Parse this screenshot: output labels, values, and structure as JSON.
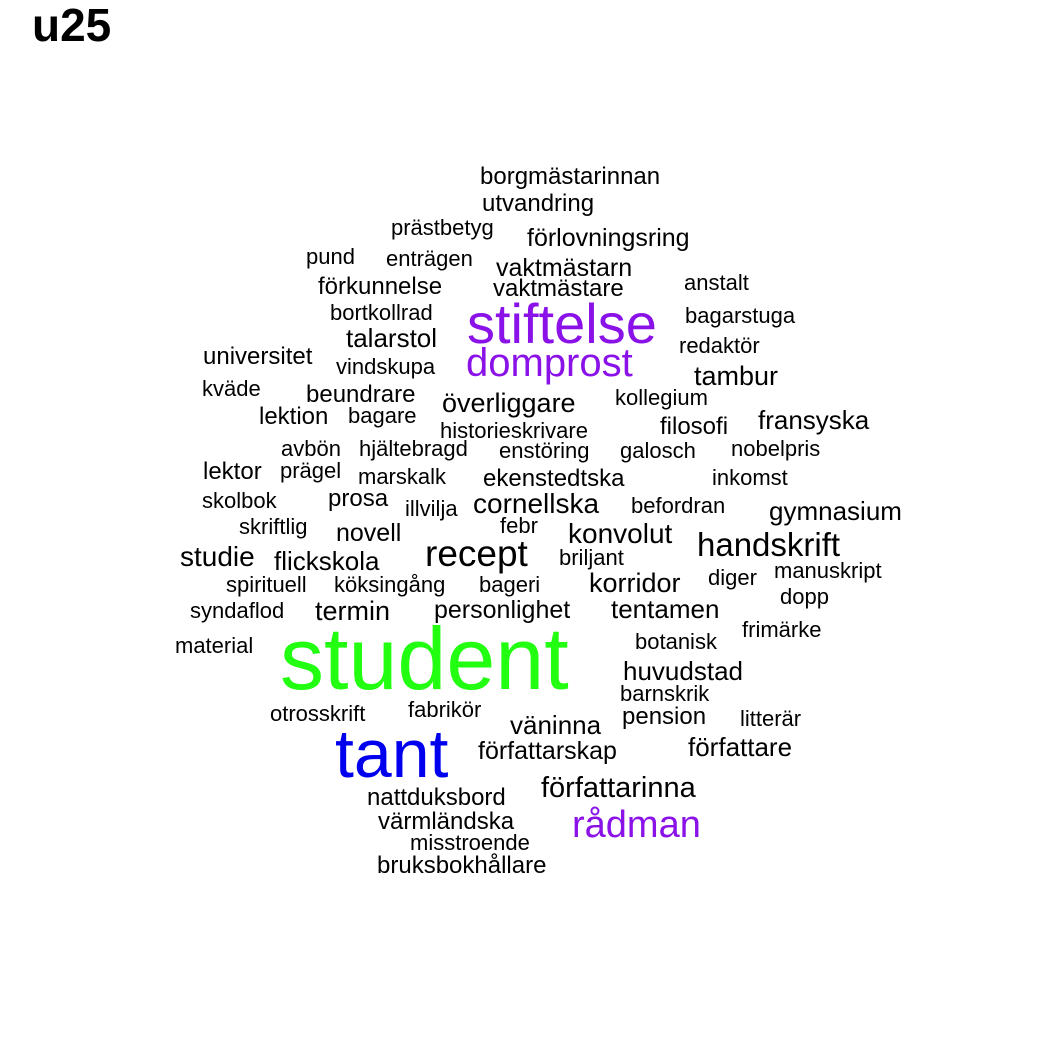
{
  "title": "u25",
  "palette": {
    "default": "#000000",
    "green": "#22ff10",
    "blue": "#0000ee",
    "purple": "#8a12e8"
  },
  "words": [
    {
      "text": "borgmästarinnan",
      "color": "default"
    },
    {
      "text": "utvandring",
      "color": "default"
    },
    {
      "text": "prästbetyg",
      "color": "default"
    },
    {
      "text": "förlovningsring",
      "color": "default"
    },
    {
      "text": "pund",
      "color": "default"
    },
    {
      "text": "enträgen",
      "color": "default"
    },
    {
      "text": "vaktmästarn",
      "color": "default"
    },
    {
      "text": "anstalt",
      "color": "default"
    },
    {
      "text": "förkunnelse",
      "color": "default"
    },
    {
      "text": "vaktmästare",
      "color": "default"
    },
    {
      "text": "bortkollrad",
      "color": "default"
    },
    {
      "text": "stiftelse",
      "color": "purple"
    },
    {
      "text": "bagarstuga",
      "color": "default"
    },
    {
      "text": "talarstol",
      "color": "default"
    },
    {
      "text": "redaktör",
      "color": "default"
    },
    {
      "text": "universitet",
      "color": "default"
    },
    {
      "text": "domprost",
      "color": "purple"
    },
    {
      "text": "vindskupa",
      "color": "default"
    },
    {
      "text": "tambur",
      "color": "default"
    },
    {
      "text": "kväde",
      "color": "default"
    },
    {
      "text": "beundrare",
      "color": "default"
    },
    {
      "text": "kollegium",
      "color": "default"
    },
    {
      "text": "överliggare",
      "color": "default"
    },
    {
      "text": "lektion",
      "color": "default"
    },
    {
      "text": "bagare",
      "color": "default"
    },
    {
      "text": "fransyska",
      "color": "default"
    },
    {
      "text": "filosofi",
      "color": "default"
    },
    {
      "text": "historieskrivare",
      "color": "default"
    },
    {
      "text": "avbön",
      "color": "default"
    },
    {
      "text": "hjältebragd",
      "color": "default"
    },
    {
      "text": "enstöring",
      "color": "default"
    },
    {
      "text": "galosch",
      "color": "default"
    },
    {
      "text": "nobelpris",
      "color": "default"
    },
    {
      "text": "lektor",
      "color": "default"
    },
    {
      "text": "prägel",
      "color": "default"
    },
    {
      "text": "marskalk",
      "color": "default"
    },
    {
      "text": "ekenstedtska",
      "color": "default"
    },
    {
      "text": "inkomst",
      "color": "default"
    },
    {
      "text": "skolbok",
      "color": "default"
    },
    {
      "text": "prosa",
      "color": "default"
    },
    {
      "text": "illvilja",
      "color": "default"
    },
    {
      "text": "cornellska",
      "color": "default"
    },
    {
      "text": "befordran",
      "color": "default"
    },
    {
      "text": "gymnasium",
      "color": "default"
    },
    {
      "text": "skriftlig",
      "color": "default"
    },
    {
      "text": "novell",
      "color": "default"
    },
    {
      "text": "febr",
      "color": "default"
    },
    {
      "text": "konvolut",
      "color": "default"
    },
    {
      "text": "handskrift",
      "color": "default"
    },
    {
      "text": "studie",
      "color": "default"
    },
    {
      "text": "flickskola",
      "color": "default"
    },
    {
      "text": "recept",
      "color": "default"
    },
    {
      "text": "briljant",
      "color": "default"
    },
    {
      "text": "manuskript",
      "color": "default"
    },
    {
      "text": "spirituell",
      "color": "default"
    },
    {
      "text": "köksingång",
      "color": "default"
    },
    {
      "text": "bageri",
      "color": "default"
    },
    {
      "text": "korridor",
      "color": "default"
    },
    {
      "text": "diger",
      "color": "default"
    },
    {
      "text": "dopp",
      "color": "default"
    },
    {
      "text": "syndaflod",
      "color": "default"
    },
    {
      "text": "termin",
      "color": "default"
    },
    {
      "text": "personlighet",
      "color": "default"
    },
    {
      "text": "tentamen",
      "color": "default"
    },
    {
      "text": "frimärke",
      "color": "default"
    },
    {
      "text": "material",
      "color": "default"
    },
    {
      "text": "student",
      "color": "green"
    },
    {
      "text": "botanisk",
      "color": "default"
    },
    {
      "text": "huvudstad",
      "color": "default"
    },
    {
      "text": "barnskrik",
      "color": "default"
    },
    {
      "text": "otrosskrift",
      "color": "default"
    },
    {
      "text": "fabrikör",
      "color": "default"
    },
    {
      "text": "pension",
      "color": "default"
    },
    {
      "text": "litterär",
      "color": "default"
    },
    {
      "text": "väninna",
      "color": "default"
    },
    {
      "text": "tant",
      "color": "blue"
    },
    {
      "text": "författare",
      "color": "default"
    },
    {
      "text": "författarskap",
      "color": "default"
    },
    {
      "text": "författarinna",
      "color": "default"
    },
    {
      "text": "nattduksbord",
      "color": "default"
    },
    {
      "text": "rådman",
      "color": "purple"
    },
    {
      "text": "värmländska",
      "color": "default"
    },
    {
      "text": "misstroende",
      "color": "default"
    },
    {
      "text": "bruksbokhållare",
      "color": "default"
    }
  ]
}
